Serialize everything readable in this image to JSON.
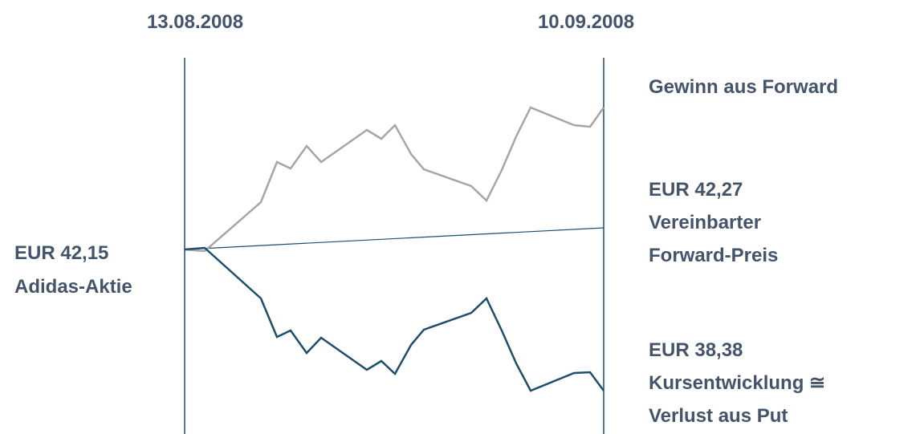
{
  "dates": {
    "start": "13.08.2008",
    "end": "10.09.2008"
  },
  "gain_label": "Gewinn aus Forward",
  "forward": {
    "price": "EUR 42,27",
    "line1": "Vereinbarter",
    "line2": "Forward-Preis"
  },
  "spot": {
    "price": "EUR 42,15",
    "name": "Adidas-Aktie"
  },
  "loss": {
    "price": "EUR 38,38",
    "line1": "Kursentwicklung ≅",
    "line2": "Verlust aus Put"
  }
}
